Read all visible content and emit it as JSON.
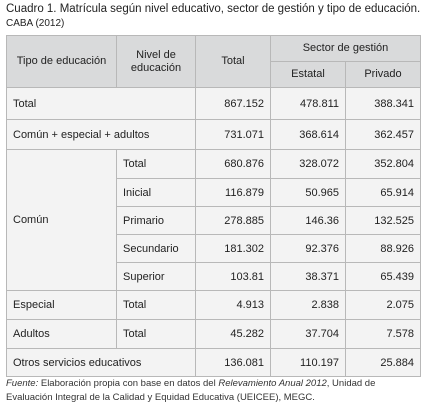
{
  "title": "Cuadro 1. Matrícula según nivel educativo, sector de gestión y tipo de educación.",
  "subtitle": "CABA (2012)",
  "table": {
    "header": {
      "tipo": "Tipo de educación",
      "nivel": "Nivel de educación",
      "total": "Total",
      "sector": "Sector de gestión",
      "estatal": "Estatal",
      "privado": "Privado"
    },
    "rows": [
      [
        "Total",
        "867.152",
        "478.811",
        "388.341"
      ],
      [
        "Común + especial + adultos",
        "731.071",
        "368.614",
        "362.457"
      ]
    ],
    "comun": {
      "label": "Común",
      "rows": [
        [
          "Total",
          "680.876",
          "328.072",
          "352.804"
        ],
        [
          "Inicial",
          "116.879",
          "50.965",
          "65.914"
        ],
        [
          "Primario",
          "278.885",
          "146.36",
          "132.525"
        ],
        [
          "Secundario",
          "181.302",
          "92.376",
          "88.926"
        ],
        [
          "Superior",
          "103.81",
          "38.371",
          "65.439"
        ]
      ]
    },
    "especial": [
      "Especial",
      "Total",
      "4.913",
      "2.838",
      "2.075"
    ],
    "adultos": [
      "Adultos",
      "Total",
      "45.282",
      "37.704",
      "7.578"
    ],
    "otros": [
      "Otros servicios educativos",
      "136.081",
      "110.197",
      "25.884"
    ]
  },
  "source": {
    "label": "Fuente:",
    "text1": "Elaboración propia con base en datos del",
    "italic": "Relevamiento Anual 2012",
    "text2": ", Unidad de Evaluación Integral de la Calidad y Equidad Educativa (UEICEE), MEGC."
  }
}
